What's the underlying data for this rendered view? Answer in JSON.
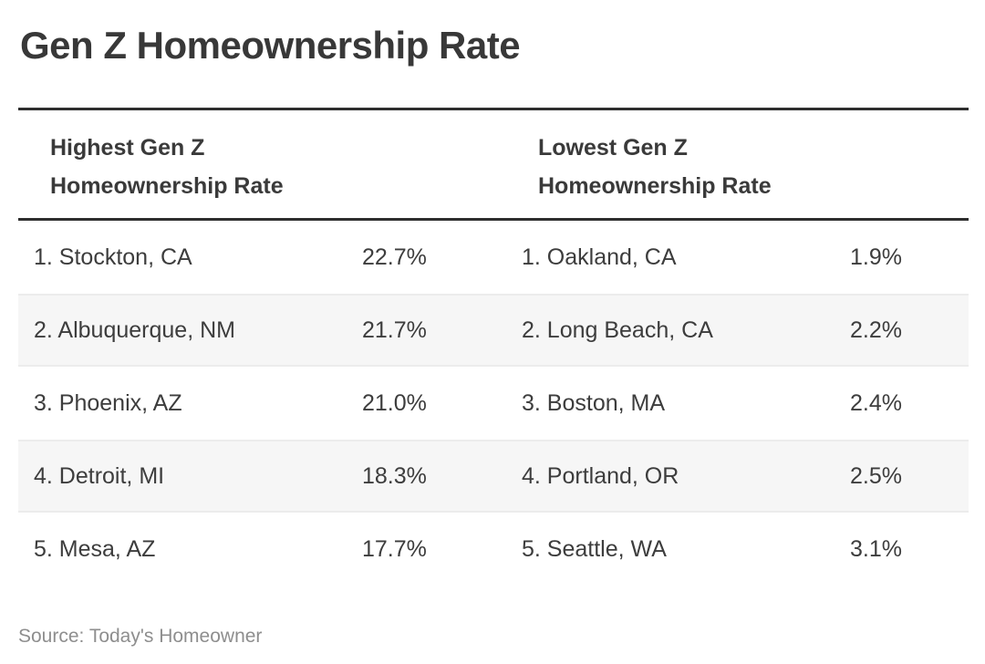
{
  "page": {
    "title": "Gen Z Homeownership Rate",
    "source": "Source: Today's Homeowner"
  },
  "table": {
    "left": {
      "header": "Highest Gen Z Homeownership Rate",
      "rows": [
        {
          "label": "1. Stockton, CA",
          "value": "22.7%"
        },
        {
          "label": "2. Albuquerque, NM",
          "value": "21.7%"
        },
        {
          "label": "3. Phoenix, AZ",
          "value": "21.0%"
        },
        {
          "label": "4. Detroit, MI",
          "value": "18.3%"
        },
        {
          "label": "5. Mesa, AZ",
          "value": "17.7%"
        }
      ]
    },
    "right": {
      "header": "Lowest Gen Z Homeownership Rate",
      "rows": [
        {
          "label": "1. Oakland, CA",
          "value": "1.9%"
        },
        {
          "label": "2. Long Beach, CA",
          "value": "2.2%"
        },
        {
          "label": "3. Boston, MA",
          "value": "2.4%"
        },
        {
          "label": "4. Portland, OR",
          "value": "2.5%"
        },
        {
          "label": "5. Seattle, WA",
          "value": "3.1%"
        }
      ]
    }
  },
  "colors": {
    "rule_dark": "#2e2e2e",
    "stripe_bg": "#f6f6f6",
    "stripe_edge": "#ececec",
    "body_text": "#3d3d3d",
    "source_text": "#8e8e8e"
  },
  "chart_data": {
    "type": "table",
    "title": "Gen Z Homeownership Rate",
    "source": "Today's Homeowner",
    "series": [
      {
        "name": "Highest Gen Z Homeownership Rate",
        "categories": [
          "Stockton, CA",
          "Albuquerque, NM",
          "Phoenix, AZ",
          "Detroit, MI",
          "Mesa, AZ"
        ],
        "values": [
          22.7,
          21.7,
          21.0,
          18.3,
          17.7
        ],
        "unit": "%"
      },
      {
        "name": "Lowest Gen Z Homeownership Rate",
        "categories": [
          "Oakland, CA",
          "Long Beach, CA",
          "Boston, MA",
          "Portland, OR",
          "Seattle, WA"
        ],
        "values": [
          1.9,
          2.2,
          2.4,
          2.5,
          3.1
        ],
        "unit": "%"
      }
    ]
  }
}
